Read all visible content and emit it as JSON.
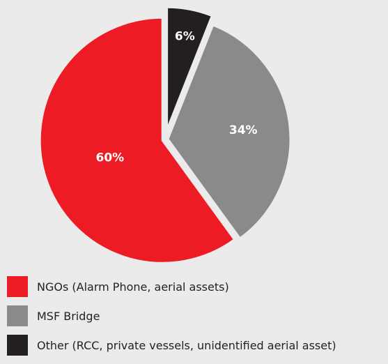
{
  "chart_data": {
    "type": "pie",
    "title": "",
    "slices": [
      {
        "label": "NGOs (Alarm Phone, aerial assets)",
        "value": 60,
        "display": "60%",
        "color": "#ed1c24"
      },
      {
        "label": "MSF Bridge",
        "value": 34,
        "display": "34%",
        "color": "#8a8a8a"
      },
      {
        "label": "Other (RCC, private vessels, unidentified aerial asset)",
        "value": 6,
        "display": "6%",
        "color": "#231f20"
      }
    ],
    "legend_position": "bottom-left",
    "exploded_slice": "Other (RCC, private vessels, unidentified aerial asset)"
  }
}
